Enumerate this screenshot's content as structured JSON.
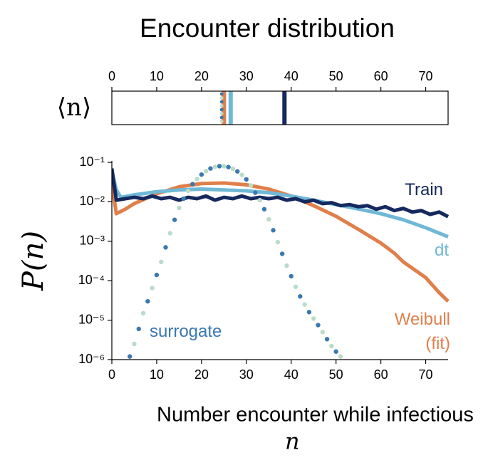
{
  "chart_data": [
    {
      "type": "strip",
      "title": "Encounter distribution",
      "ylabel": "⟨n⟩",
      "xlim": [
        0,
        75
      ],
      "xticks": [
        0,
        10,
        20,
        30,
        40,
        50,
        60,
        70
      ],
      "series": [
        {
          "color": "#e07f4a",
          "values": [
            25
          ]
        },
        {
          "color": "#6fb8d6",
          "values": [
            26.5
          ]
        },
        {
          "color": "#15295e",
          "values": [
            38.5
          ]
        },
        {
          "color": "#3a78b0",
          "style": "dotted",
          "dot_colors": [
            "#3a78b0",
            "#b9dcc9"
          ],
          "values": [
            24.5
          ]
        }
      ]
    },
    {
      "type": "line",
      "xlabel": "Number encounter while infectious",
      "xlabel_symbol": "n",
      "ylabel": "P(n)",
      "log_y": true,
      "xlim": [
        0,
        75
      ],
      "xticks": [
        0,
        10,
        20,
        30,
        40,
        50,
        60,
        70
      ],
      "ylim": [
        1e-06,
        0.1
      ],
      "yticks": [
        {
          "value": 1e-06,
          "label": "10⁻⁶"
        },
        {
          "value": 1e-05,
          "label": "10⁻⁵"
        },
        {
          "value": 0.0001,
          "label": "10⁻⁴"
        },
        {
          "value": 0.001,
          "label": "10⁻³"
        },
        {
          "value": 0.01,
          "label": "10⁻²"
        },
        {
          "value": 0.1,
          "label": "10⁻¹"
        }
      ],
      "series": [
        {
          "name": "Weibull (fit)",
          "color": "#e07f4a",
          "x": [
            0,
            1,
            3,
            5,
            10,
            15,
            20,
            25,
            30,
            35,
            40,
            45,
            50,
            55,
            60,
            63,
            65,
            70,
            73,
            75
          ],
          "values": [
            0.03,
            0.005,
            0.0065,
            0.009,
            0.016,
            0.024,
            0.029,
            0.03,
            0.027,
            0.021,
            0.014,
            0.008,
            0.0043,
            0.002,
            0.0009,
            0.0005,
            0.0003,
            0.00012,
            5e-05,
            3e-05
          ]
        },
        {
          "name": "dt",
          "color": "#6fb8d6",
          "x": [
            0,
            1,
            2,
            5,
            10,
            15,
            20,
            25,
            30,
            35,
            40,
            45,
            50,
            55,
            60,
            65,
            70,
            75
          ],
          "values": [
            0.06,
            0.02,
            0.013,
            0.015,
            0.018,
            0.02,
            0.021,
            0.02,
            0.019,
            0.017,
            0.014,
            0.011,
            0.0085,
            0.0066,
            0.005,
            0.0035,
            0.0022,
            0.0013
          ]
        },
        {
          "name": "Train",
          "color": "#15295e",
          "x": [
            0,
            1,
            3,
            5,
            7,
            9,
            11,
            13,
            15,
            17,
            19,
            21,
            23,
            25,
            27,
            29,
            31,
            33,
            35,
            37,
            39,
            41,
            43,
            45,
            47,
            49,
            51,
            53,
            55,
            57,
            59,
            61,
            63,
            65,
            67,
            69,
            71,
            73,
            75
          ],
          "values": [
            0.07,
            0.011,
            0.012,
            0.013,
            0.012,
            0.014,
            0.012,
            0.013,
            0.011,
            0.013,
            0.012,
            0.014,
            0.011,
            0.013,
            0.012,
            0.014,
            0.012,
            0.013,
            0.012,
            0.013,
            0.011,
            0.012,
            0.01,
            0.011,
            0.009,
            0.0095,
            0.008,
            0.0085,
            0.0075,
            0.008,
            0.0065,
            0.0075,
            0.006,
            0.0068,
            0.0055,
            0.006,
            0.0048,
            0.0055,
            0.0042
          ]
        },
        {
          "name": "surrogate",
          "color": "#3a78b0",
          "style": "dotted",
          "dot_colors": [
            "#3a78b0",
            "#b9dcc9"
          ],
          "x": [
            4,
            5,
            6,
            7,
            8,
            9,
            10,
            11,
            12,
            13,
            14,
            15,
            16,
            17,
            18,
            19,
            20,
            21,
            22,
            23,
            24,
            25,
            26,
            27,
            28,
            29,
            30,
            31,
            32,
            33,
            34,
            35,
            36,
            37,
            38,
            39,
            40,
            41,
            42,
            43,
            44,
            45,
            46,
            47,
            48,
            49,
            50,
            51
          ],
          "values": [
            1.2e-06,
            2.5e-06,
            6e-06,
            1.5e-05,
            3e-05,
            6.5e-05,
            0.00014,
            0.0003,
            0.0007,
            0.0016,
            0.0035,
            0.007,
            0.012,
            0.019,
            0.028,
            0.038,
            0.049,
            0.06,
            0.07,
            0.077,
            0.08,
            0.08,
            0.076,
            0.069,
            0.059,
            0.048,
            0.037,
            0.026,
            0.017,
            0.011,
            0.0065,
            0.0036,
            0.0019,
            0.00095,
            0.00048,
            0.00024,
            0.00013,
            7e-05,
            4e-05,
            2.5e-05,
            1.6e-05,
            1.1e-05,
            7.5e-06,
            5e-06,
            3.3e-06,
            2.2e-06,
            1.6e-06,
            1.2e-06
          ]
        }
      ]
    }
  ]
}
